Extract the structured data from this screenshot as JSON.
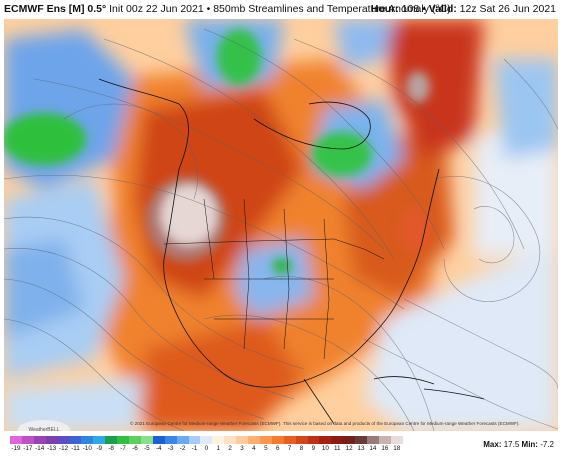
{
  "header": {
    "model": "ECMWF Ens [M] 0.5°",
    "init_desc": "Init 00z 22 Jun 2021 • 850mb Streamlines and Temperature Anomaly (°C)",
    "hour_label": "Hour:",
    "hour_value": "108",
    "valid_label": "Valid:",
    "valid_value": "12z Sat 26 Jun 2021"
  },
  "map": {
    "copyright": "© 2021 European Centre for Medium-range Weather Forecasts (ECMWF). This service is based on data and products of the European Centre for Medium-range Weather Forecasts (ECMWF).",
    "logo_text": "WeatherBELL"
  },
  "colorbar": {
    "labels": [
      "-19",
      "-17",
      "-14",
      "-13",
      "-12",
      "-11",
      "-10",
      "-9",
      "-8",
      "-7",
      "-6",
      "-5",
      "-4",
      "-3",
      "-2",
      "-1",
      "0",
      "1",
      "2",
      "3",
      "4",
      "5",
      "6",
      "7",
      "8",
      "9",
      "10",
      "11",
      "12",
      "13",
      "14",
      "16",
      "18"
    ],
    "colors": [
      "#e066e0",
      "#c050c8",
      "#9a40b8",
      "#7c3fb0",
      "#5a4fc8",
      "#3c63d8",
      "#2f86e0",
      "#2fa8e8",
      "#1aa04a",
      "#2ec03e",
      "#5ad15a",
      "#86e08a",
      "#1c5fd6",
      "#3a86e8",
      "#6aaaf2",
      "#a6ccf8",
      "#dfe9f7",
      "#fff1e0",
      "#ffe0c0",
      "#ffcb99",
      "#ffb070",
      "#ff944a",
      "#f57a2e",
      "#e85e20",
      "#d64518",
      "#c03012",
      "#a82010",
      "#8e1a12",
      "#74201a",
      "#6a3a36",
      "#9a7a78",
      "#c8b2b0",
      "#e8dcdc"
    ],
    "max_label": "Max:",
    "max_value": "17.5",
    "min_label": "Min:",
    "min_value": "-7.2"
  }
}
